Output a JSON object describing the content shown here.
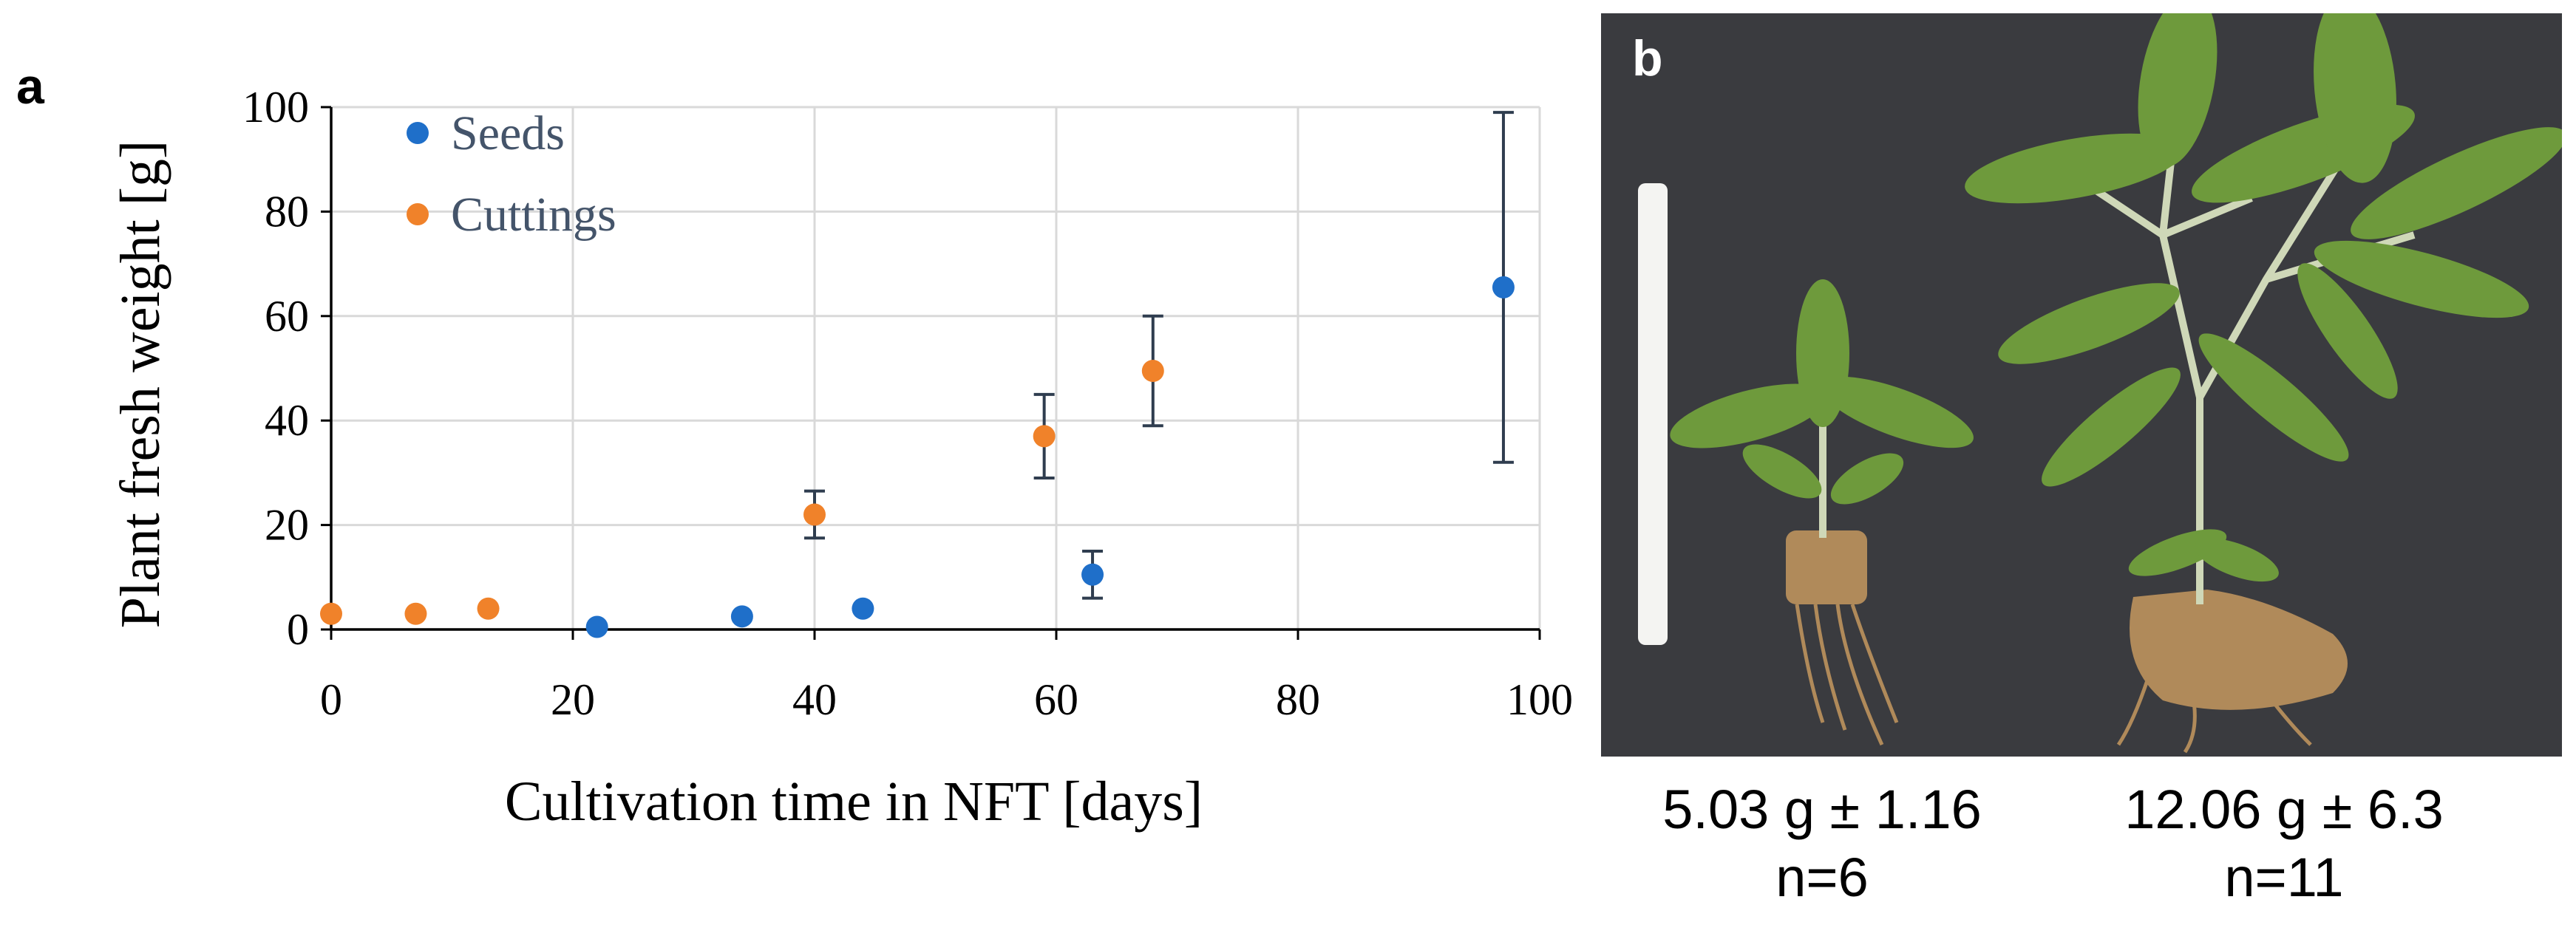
{
  "panel_a": {
    "letter": "a"
  },
  "panel_b": {
    "letter": "b",
    "caption_left": {
      "weight": "5.03 g ± 1.16",
      "n": "n=6"
    },
    "caption_right": {
      "weight": "12.06 g ± 6.3",
      "n": "n=11"
    },
    "background_color": "#3a3b3f",
    "ruler_color": "#f4f4f2",
    "leaf_color": "#6e9a3c",
    "root_color": "#b08a5a"
  },
  "chart_data": {
    "type": "scatter",
    "title": "",
    "xlabel": "Cultivation time in NFT [days]",
    "ylabel": "Plant fresh weight [g]",
    "xlim": [
      0,
      100
    ],
    "ylim": [
      0,
      100
    ],
    "xticks": [
      0,
      20,
      40,
      60,
      80,
      100
    ],
    "yticks": [
      0,
      20,
      40,
      60,
      80,
      100
    ],
    "grid": true,
    "legend_position": "top-left",
    "series": [
      {
        "name": "Seeds",
        "color": "#1f6fc9",
        "points": [
          {
            "x": 22,
            "y": 0.5,
            "err": 0
          },
          {
            "x": 34,
            "y": 2.5,
            "err": 0
          },
          {
            "x": 44,
            "y": 4,
            "err": 0
          },
          {
            "x": 63,
            "y": 10.5,
            "err": 4.5
          },
          {
            "x": 97,
            "y": 65.5,
            "err": 33.5
          }
        ]
      },
      {
        "name": "Cuttings",
        "color": "#f0822a",
        "points": [
          {
            "x": 0,
            "y": 3,
            "err": 0
          },
          {
            "x": 7,
            "y": 3,
            "err": 0
          },
          {
            "x": 13,
            "y": 4,
            "err": 0
          },
          {
            "x": 40,
            "y": 22,
            "err": 4.5
          },
          {
            "x": 59,
            "y": 37,
            "err": 8
          },
          {
            "x": 68,
            "y": 49.5,
            "err": 10.5
          }
        ]
      }
    ]
  }
}
